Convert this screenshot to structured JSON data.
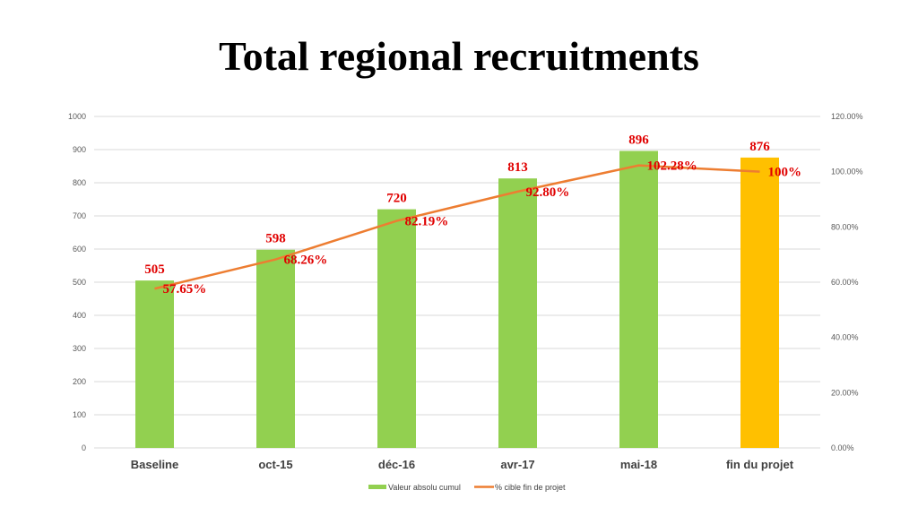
{
  "chart_data": {
    "type": "bar+line",
    "title": "Total regional recruitments",
    "categories": [
      "Baseline",
      "oct-15",
      "déc-16",
      "avr-17",
      "mai-18",
      "fin du projet"
    ],
    "series": [
      {
        "name": "Valeur absolu cumul",
        "type": "bar",
        "axis": "left",
        "values": [
          505,
          598,
          720,
          813,
          896,
          876
        ],
        "labels": [
          "505",
          "598",
          "720",
          "813",
          "896",
          "876"
        ],
        "colors": [
          "#92d050",
          "#92d050",
          "#92d050",
          "#92d050",
          "#92d050",
          "#ffc000"
        ]
      },
      {
        "name": "% cible fin de projet",
        "type": "line",
        "axis": "right",
        "values": [
          57.65,
          68.26,
          82.19,
          92.8,
          102.28,
          100
        ],
        "labels": [
          "57.65%",
          "68.26%",
          "82.19%",
          "92.80%",
          "102.28%",
          "100%"
        ],
        "color": "#ed7d31"
      }
    ],
    "left_axis": {
      "range": [
        0,
        1000
      ],
      "ticks": [
        "0",
        "100",
        "200",
        "300",
        "400",
        "500",
        "600",
        "700",
        "800",
        "900",
        "1000"
      ]
    },
    "right_axis": {
      "range": [
        0,
        120
      ],
      "ticks": [
        "0.00%",
        "20.00%",
        "40.00%",
        "60.00%",
        "80.00%",
        "100.00%",
        "120.00%"
      ]
    },
    "grid": true,
    "legend_position": "bottom",
    "label_color": "#e00000"
  }
}
